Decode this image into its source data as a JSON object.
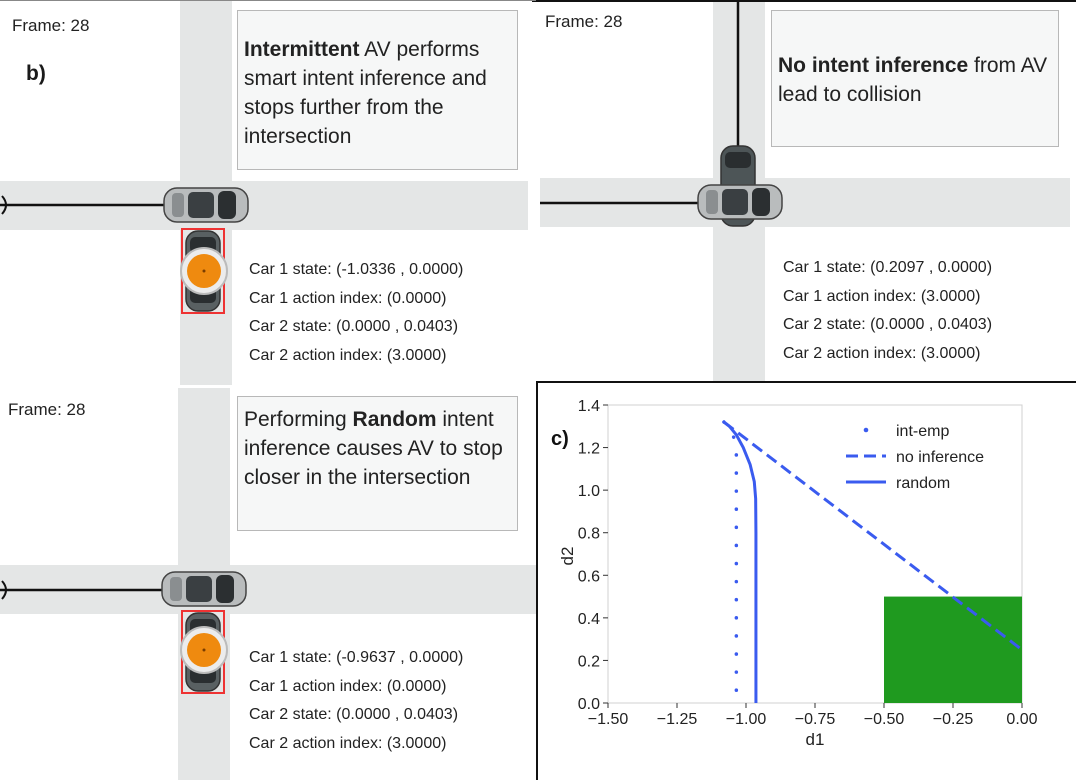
{
  "panels": {
    "intermittent": {
      "frame": "Frame: 28",
      "panel_label": "b)",
      "note_bold": "Intermittent",
      "note_rest": " AV performs smart intent inference and stops further from the intersection",
      "info": [
        "Car 1 state: (-1.0336 , 0.0000)",
        "Car 1 action index: (0.0000)",
        "Car 2 state: (0.0000 , 0.0403)",
        "Car 2 action index: (3.0000)"
      ]
    },
    "no_inference": {
      "frame": "Frame: 28",
      "note_bold": "No intent inference",
      "note_rest": " from AV lead to collision",
      "info": [
        "Car 1 state: (0.2097 , 0.0000)",
        "Car 1 action index: (3.0000)",
        "Car 2 state: (0.0000 , 0.0403)",
        "Car 2 action index: (3.0000)"
      ]
    },
    "random": {
      "frame": "Frame: 28",
      "note_pre": "Performing ",
      "note_bold": "Random",
      "note_rest": " intent inference causes AV to stop closer in the intersection",
      "info": [
        "Car 1 state: (-0.9637 , 0.0000)",
        "Car 1 action index: (0.0000)",
        "Car 2 state: (0.0000 , 0.0403)",
        "Car 2 action index: (3.0000)"
      ]
    }
  },
  "chart_data": {
    "type": "line",
    "panel_label": "c)",
    "xlabel": "d1",
    "ylabel": "d2",
    "xlim": [
      -1.5,
      0.0
    ],
    "ylim": [
      0.0,
      1.4
    ],
    "xticks": [
      -1.5,
      -1.25,
      -1.0,
      -0.75,
      -0.5,
      -0.25,
      0.0
    ],
    "xtick_labels": [
      "−1.50",
      "−1.25",
      "−1.00",
      "−0.75",
      "−0.50",
      "−0.25",
      "0.00"
    ],
    "yticks": [
      0.0,
      0.2,
      0.4,
      0.6,
      0.8,
      1.0,
      1.2,
      1.4
    ],
    "ytick_labels": [
      "0.0",
      "0.2",
      "0.4",
      "0.6",
      "0.8",
      "1.0",
      "1.2",
      "1.4"
    ],
    "legend_position": "top-right",
    "line_color": "#3a5bef",
    "region": {
      "x": [
        -0.5,
        0.0
      ],
      "y": [
        0.0,
        0.5
      ],
      "color": "#1f9a1f"
    },
    "series": [
      {
        "name": "int-emp",
        "style": "dotted",
        "x": [
          -1.08,
          -1.06,
          -1.045,
          -1.035,
          -1.035,
          -1.035,
          -1.035,
          -1.035,
          -1.035
        ],
        "y": [
          1.32,
          1.29,
          1.25,
          1.2,
          1.0,
          0.8,
          0.6,
          0.3,
          0.0
        ]
      },
      {
        "name": "no inference",
        "style": "dashed",
        "x": [
          -1.08,
          0.0
        ],
        "y": [
          1.32,
          0.25
        ]
      },
      {
        "name": "random",
        "style": "solid",
        "x": [
          -1.08,
          -1.06,
          -1.035,
          -1.01,
          -0.985,
          -0.97,
          -0.965,
          -0.964,
          -0.964,
          -0.964
        ],
        "y": [
          1.32,
          1.3,
          1.26,
          1.2,
          1.12,
          1.04,
          0.96,
          0.8,
          0.4,
          0.0
        ]
      }
    ]
  }
}
